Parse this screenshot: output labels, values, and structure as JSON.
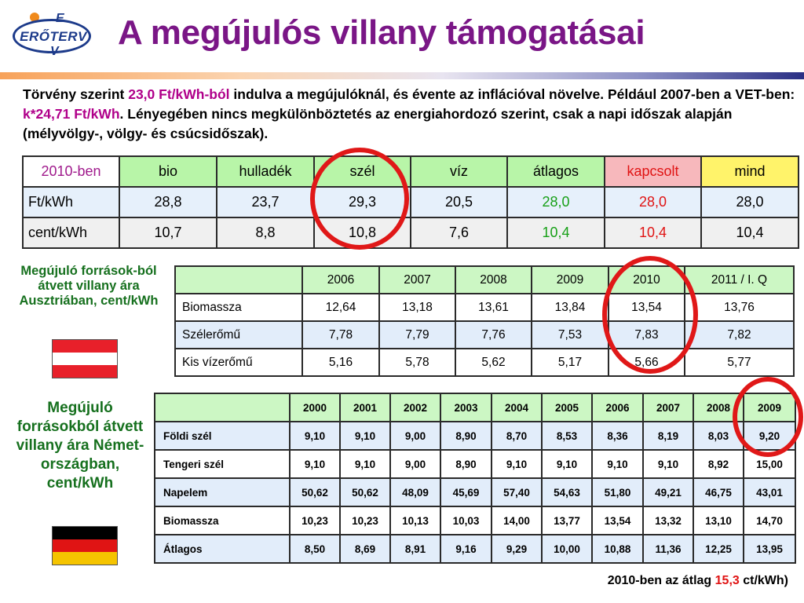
{
  "logo": {
    "top_letter": "E",
    "main": "ERŐTERV",
    "bottom_letter": "V"
  },
  "title": "A megújulós villany támogatásai",
  "intro": {
    "p1": "Törvény szerint ",
    "p2": "23,0 Ft/kWh-ból",
    "p3": " indulva a megújulóknál, és évente az inflációval növelve. Például 2007-ben a VET-ben: ",
    "p4": "k*24,71 Ft/kWh",
    "p5": ". Lényegében nincs megkülönböztetés az energiahordozó szerint, csak a napi időszak alapján (mélyvölgy-, völgy- és csúcsidőszak)."
  },
  "table1": {
    "header": [
      "2010-ben",
      "bio",
      "hulladék",
      "szél",
      "víz",
      "átlagos",
      "kapcsolt",
      "mind"
    ],
    "rows": [
      [
        "Ft/kWh",
        "28,8",
        "23,7",
        "29,3",
        "20,5",
        "28,0",
        "28,0",
        "28,0"
      ],
      [
        "cent/kWh",
        "10,7",
        "8,8",
        "10,8",
        "7,6",
        "10,4",
        "10,4",
        "10,4"
      ]
    ]
  },
  "austria": {
    "label": "Megújuló források-ból átvett villany ára Ausztriában, cent/kWh",
    "flag_colors": [
      "#e8202a",
      "#ffffff",
      "#e8202a"
    ],
    "table": {
      "header": [
        "",
        "2006",
        "2007",
        "2008",
        "2009",
        "2010",
        "2011 / I. Q"
      ],
      "rows": [
        [
          "Biomassza",
          "12,64",
          "13,18",
          "13,61",
          "13,84",
          "13,54",
          "13,76"
        ],
        [
          "Szélerőmű",
          "7,78",
          "7,79",
          "7,76",
          "7,53",
          "7,83",
          "7,82"
        ],
        [
          "Kis vízerőmű",
          "5,16",
          "5,78",
          "5,62",
          "5,17",
          "5,66",
          "5,77"
        ]
      ]
    }
  },
  "germany": {
    "label": "Megújuló forrásokból átvett villany ára Német-országban, cent/kWh",
    "flag_colors": [
      "#000000",
      "#e01414",
      "#f5c400"
    ],
    "table": {
      "header": [
        "",
        "2000",
        "2001",
        "2002",
        "2003",
        "2004",
        "2005",
        "2006",
        "2007",
        "2008",
        "2009"
      ],
      "rows": [
        [
          "Földi szél",
          "9,10",
          "9,10",
          "9,00",
          "8,90",
          "8,70",
          "8,53",
          "8,36",
          "8,19",
          "8,03",
          "9,20"
        ],
        [
          "Tengeri szél",
          "9,10",
          "9,10",
          "9,00",
          "8,90",
          "9,10",
          "9,10",
          "9,10",
          "9,10",
          "8,92",
          "15,00"
        ],
        [
          "Napelem",
          "50,62",
          "50,62",
          "48,09",
          "45,69",
          "57,40",
          "54,63",
          "51,80",
          "49,21",
          "46,75",
          "43,01"
        ],
        [
          "Biomassza",
          "10,23",
          "10,23",
          "10,13",
          "10,03",
          "14,00",
          "13,77",
          "13,54",
          "13,32",
          "13,10",
          "14,70"
        ],
        [
          "Átlagos",
          "8,50",
          "8,69",
          "8,91",
          "9,16",
          "9,29",
          "10,00",
          "10,88",
          "11,36",
          "12,25",
          "13,95"
        ]
      ]
    }
  },
  "footer": {
    "p1": "2010-ben az átlag ",
    "p2": "15,3",
    "p3": " ct/kWh)"
  },
  "colors": {
    "title": "#7a1686",
    "highlight": "#b0008a",
    "circle": "#e01818",
    "label_green": "#16701e"
  }
}
